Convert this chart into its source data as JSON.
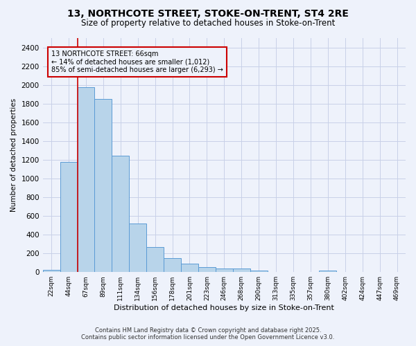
{
  "title": "13, NORTHCOTE STREET, STOKE-ON-TRENT, ST4 2RE",
  "subtitle": "Size of property relative to detached houses in Stoke-on-Trent",
  "xlabel": "Distribution of detached houses by size in Stoke-on-Trent",
  "ylabel": "Number of detached properties",
  "annotation_line1": "13 NORTHCOTE STREET: 66sqm",
  "annotation_line2": "← 14% of detached houses are smaller (1,012)",
  "annotation_line3": "85% of semi-detached houses are larger (6,293) →",
  "bar_labels": [
    "22sqm",
    "44sqm",
    "67sqm",
    "89sqm",
    "111sqm",
    "134sqm",
    "156sqm",
    "178sqm",
    "201sqm",
    "223sqm",
    "246sqm",
    "268sqm",
    "290sqm",
    "313sqm",
    "335sqm",
    "357sqm",
    "380sqm",
    "402sqm",
    "424sqm",
    "447sqm",
    "469sqm"
  ],
  "bar_values": [
    25,
    1175,
    1975,
    1850,
    1245,
    520,
    270,
    150,
    90,
    55,
    40,
    35,
    15,
    5,
    5,
    5,
    20,
    2,
    2,
    2,
    2
  ],
  "bar_color": "#b8d4ea",
  "bar_edge_color": "#5b9bd5",
  "background_color": "#eef2fb",
  "grid_color": "#c8d0e8",
  "vline_x": 1.5,
  "vline_color": "#cc0000",
  "annotation_box_edge": "#cc0000",
  "ylim": [
    0,
    2500
  ],
  "yticks": [
    0,
    200,
    400,
    600,
    800,
    1000,
    1200,
    1400,
    1600,
    1800,
    2000,
    2200,
    2400
  ],
  "footer_line1": "Contains HM Land Registry data © Crown copyright and database right 2025.",
  "footer_line2": "Contains public sector information licensed under the Open Government Licence v3.0."
}
